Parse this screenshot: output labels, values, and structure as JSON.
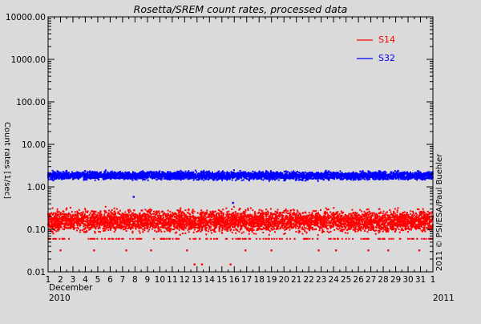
{
  "chart_data": {
    "type": "scatter",
    "title": "Rosetta/SREM count rates, processed data",
    "ylabel": "Count rates [1/sec]",
    "xlabel_month": "December",
    "xlabel_year_start": "2010",
    "xlabel_year_end": "2011",
    "copyright": "2011 © PSI/ESA/Paul Buehler",
    "y_scale": "log",
    "ylim": [
      0.01,
      10000
    ],
    "y_ticks": [
      0.01,
      0.1,
      1,
      10,
      100,
      1000,
      10000
    ],
    "y_tick_labels": [
      "0.01",
      "0.10",
      "1.00",
      "10.00",
      "100.00",
      "1000.00",
      "10000.00"
    ],
    "xlim": [
      1,
      32
    ],
    "x_ticks": [
      1,
      2,
      3,
      4,
      5,
      6,
      7,
      8,
      9,
      10,
      11,
      12,
      13,
      14,
      15,
      16,
      17,
      18,
      19,
      20,
      21,
      22,
      23,
      24,
      25,
      26,
      27,
      28,
      29,
      30,
      31,
      32
    ],
    "x_tick_labels": [
      "1",
      "2",
      "3",
      "4",
      "5",
      "6",
      "7",
      "8",
      "9",
      "10",
      "11",
      "12",
      "13",
      "14",
      "15",
      "16",
      "17",
      "18",
      "19",
      "20",
      "21",
      "22",
      "23",
      "24",
      "25",
      "26",
      "27",
      "28",
      "29",
      "30",
      "31",
      "1"
    ],
    "grid": false,
    "legend_position": "top-right",
    "series": [
      {
        "name": "S14",
        "color": "#ff0000",
        "band_low": 0.07,
        "band_high": 0.35,
        "outliers": [
          {
            "x": 2.0,
            "y": 0.032
          },
          {
            "x": 4.7,
            "y": 0.032
          },
          {
            "x": 7.3,
            "y": 0.032
          },
          {
            "x": 9.3,
            "y": 0.032
          },
          {
            "x": 12.2,
            "y": 0.032
          },
          {
            "x": 12.8,
            "y": 0.015
          },
          {
            "x": 13.4,
            "y": 0.015
          },
          {
            "x": 15.7,
            "y": 0.015
          },
          {
            "x": 16.9,
            "y": 0.032
          },
          {
            "x": 19.0,
            "y": 0.032
          },
          {
            "x": 22.8,
            "y": 0.032
          },
          {
            "x": 24.2,
            "y": 0.032
          },
          {
            "x": 26.8,
            "y": 0.032
          },
          {
            "x": 28.4,
            "y": 0.032
          },
          {
            "x": 30.9,
            "y": 0.032
          }
        ]
      },
      {
        "name": "S32",
        "color": "#0000ff",
        "band_low": 1.35,
        "band_high": 2.5,
        "outliers": [
          {
            "x": 7.9,
            "y": 0.58
          },
          {
            "x": 15.9,
            "y": 0.42
          }
        ]
      }
    ]
  }
}
